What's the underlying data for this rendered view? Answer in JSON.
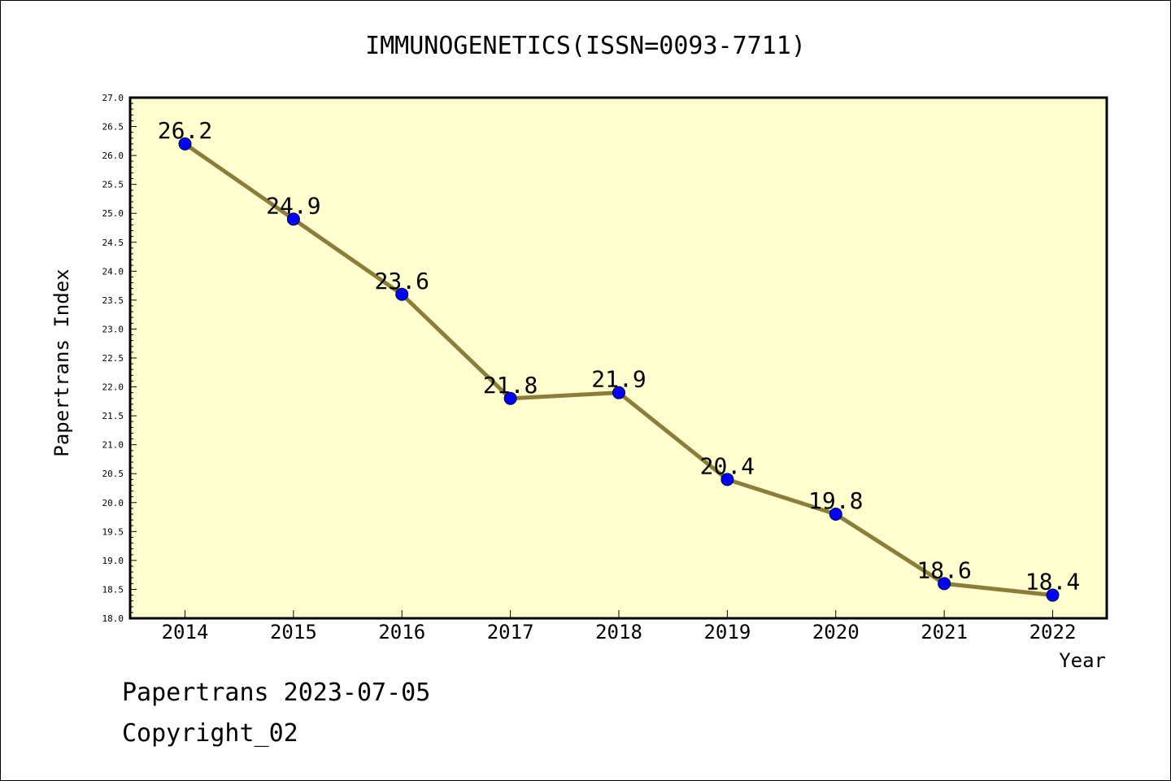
{
  "chart_data": {
    "type": "line",
    "title": "IMMUNOGENETICS(ISSN=0093-7711)",
    "xlabel": "Year",
    "ylabel": "Papertrans Index",
    "categories": [
      "2014",
      "2015",
      "2016",
      "2017",
      "2018",
      "2019",
      "2020",
      "2021",
      "2022"
    ],
    "series": [
      {
        "values": [
          26.2,
          24.9,
          23.6,
          21.8,
          21.9,
          20.4,
          19.8,
          18.6,
          18.4
        ]
      }
    ],
    "data_labels": [
      "26.2",
      "24.9",
      "23.6",
      "21.8",
      "21.9",
      "20.4",
      "19.8",
      "18.6",
      "18.4"
    ],
    "ylim": [
      18.0,
      27.0
    ],
    "y_ticks": [
      "18.0",
      "18.5",
      "19.0",
      "19.5",
      "20.0",
      "20.5",
      "21.0",
      "21.5",
      "22.0",
      "22.5",
      "23.0",
      "23.5",
      "24.0",
      "24.5",
      "25.0",
      "25.5",
      "26.0",
      "26.5",
      "27.0"
    ],
    "colors": {
      "plot_background": "#ffffd0",
      "line": "#8b7d3a",
      "marker": "#0000ff"
    },
    "grid": false,
    "legend": "none"
  },
  "footer": {
    "date_line": "Papertrans 2023-07-05",
    "copyright": "Copyright_02"
  }
}
